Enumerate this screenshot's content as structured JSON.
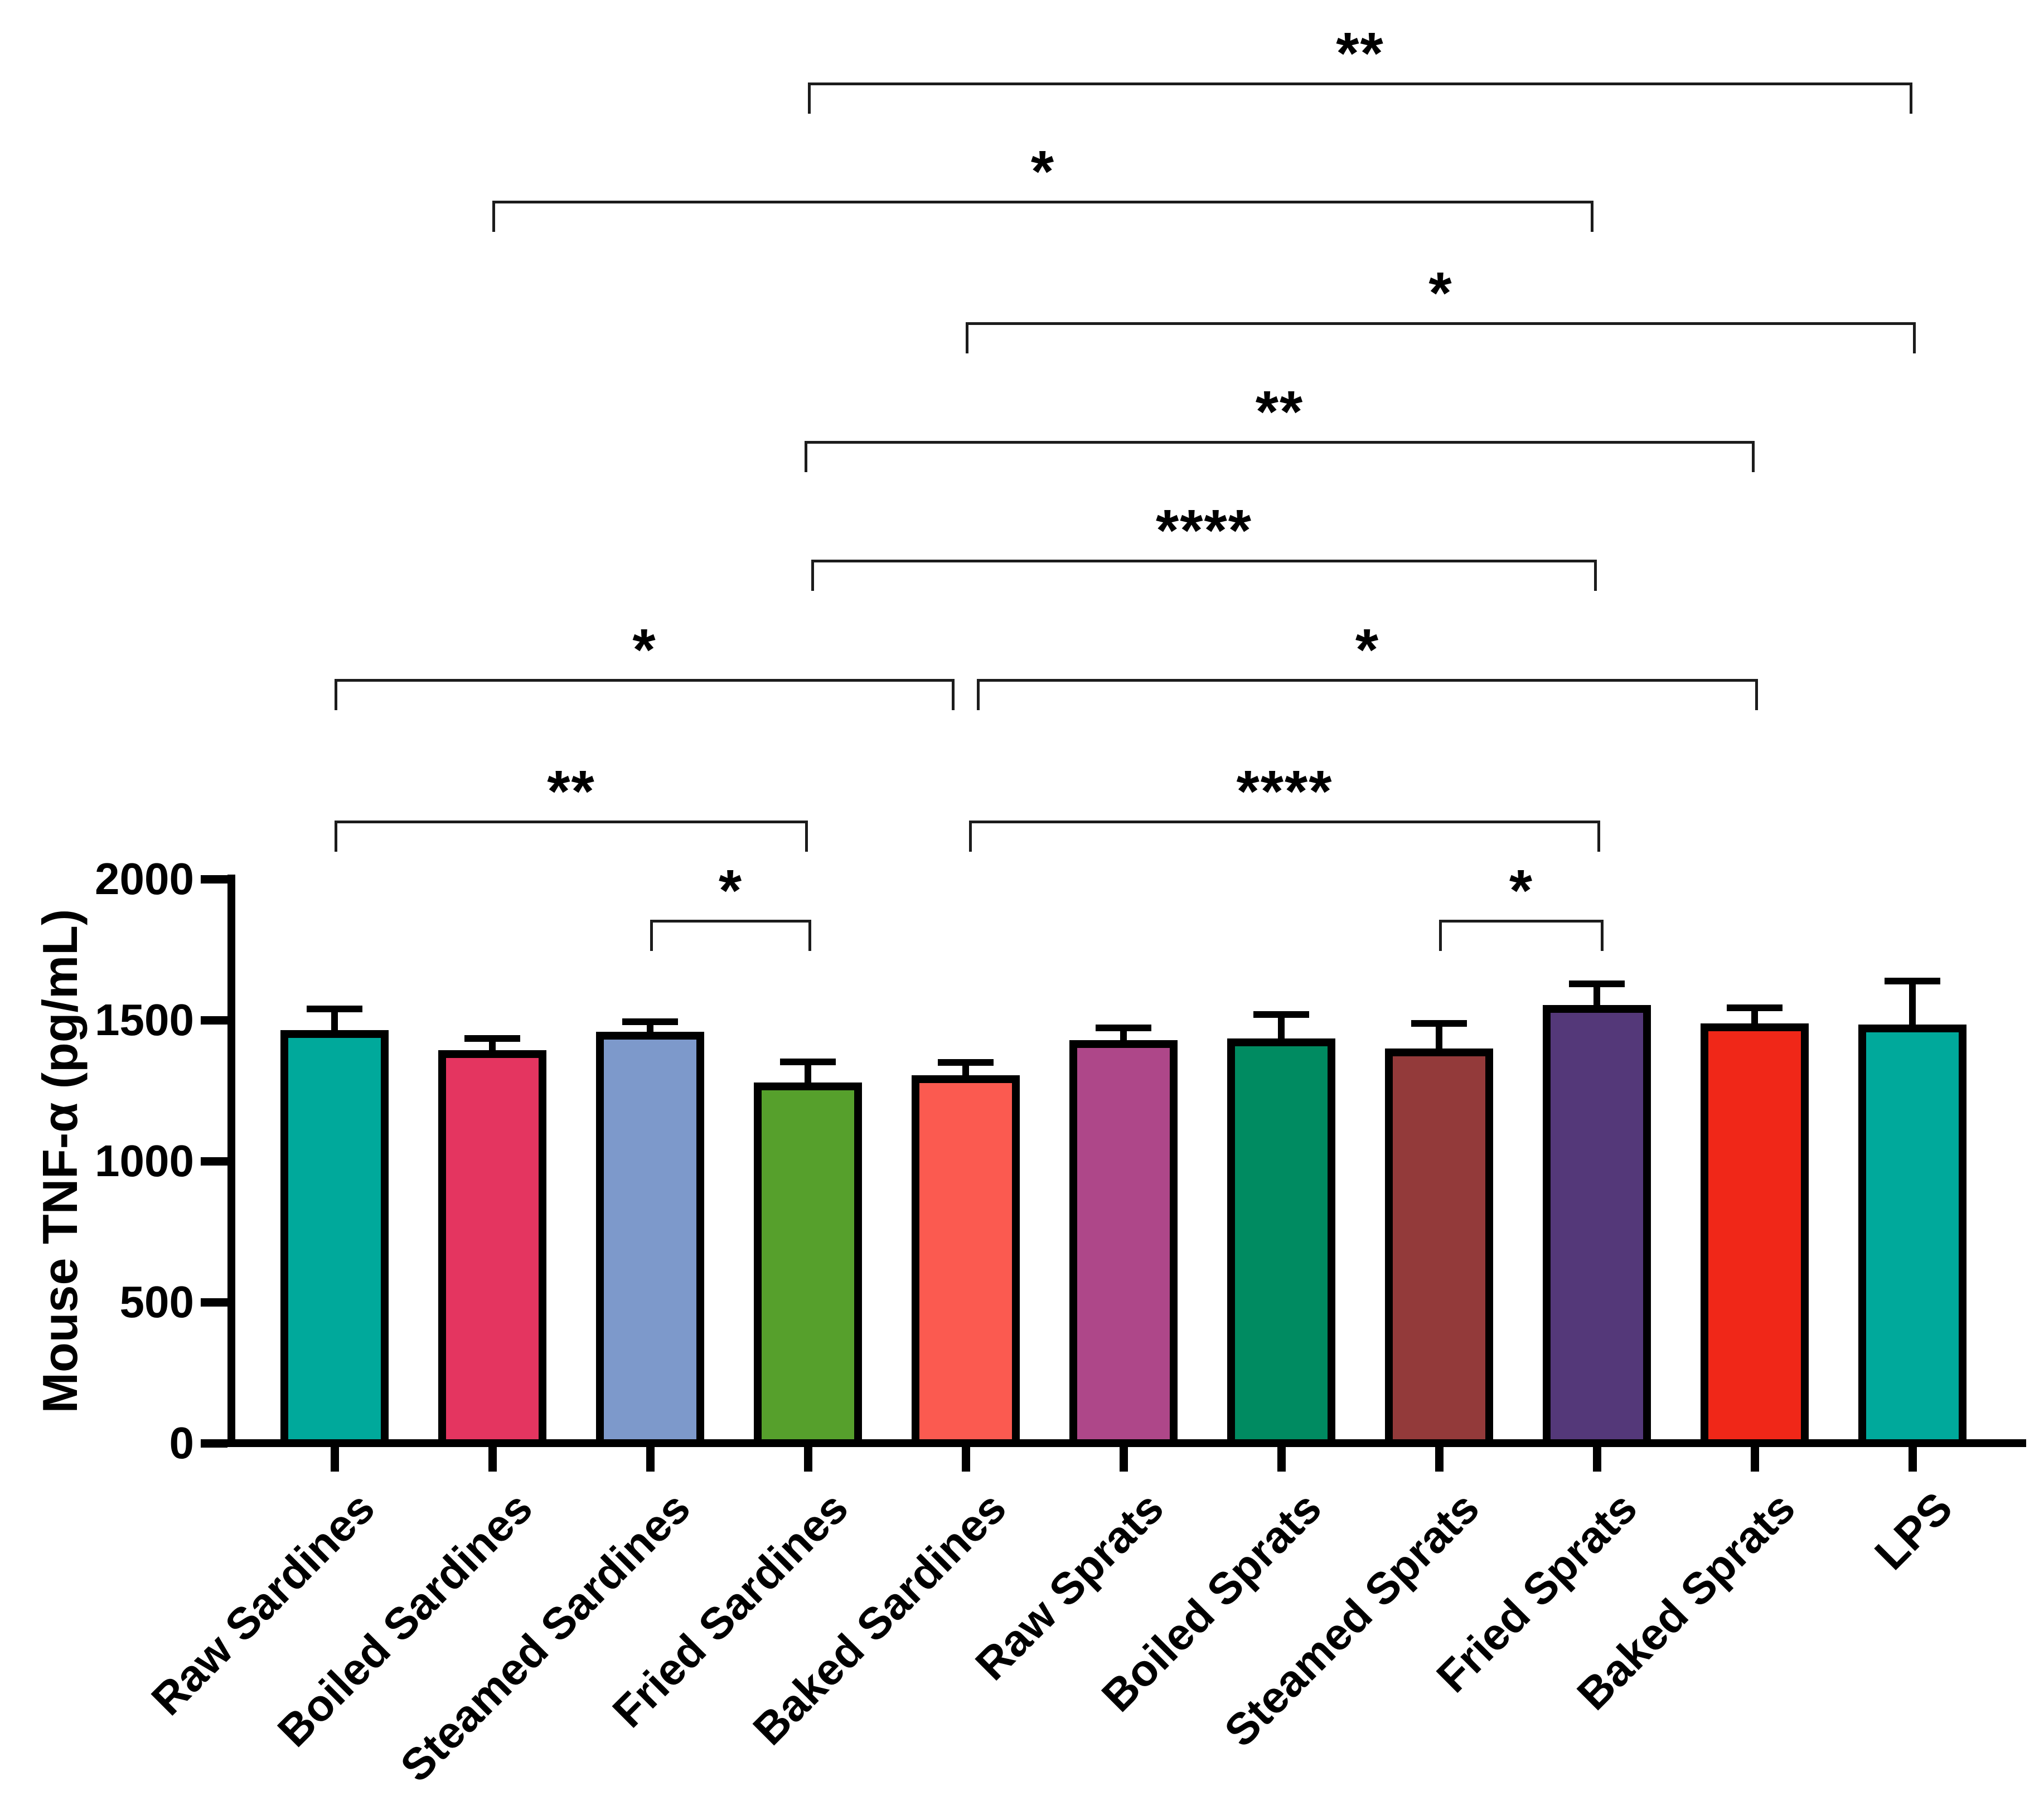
{
  "figure": {
    "background": "#FFFFFF"
  },
  "chart_data": {
    "type": "bar",
    "title": "",
    "xlabel": "",
    "ylabel": "Mouse TNF-α (pg/mL)",
    "ylim": [
      0,
      2000
    ],
    "yticks": [
      0,
      500,
      1000,
      1500,
      2000
    ],
    "grid": false,
    "legend": "none",
    "categories": [
      "Raw Sardines",
      "Boiled Sardines",
      "Steamed Sardines",
      "Fried Sardines",
      "Baked Sardines",
      "Raw Sprats",
      "Boiled Sprats",
      "Steamed Sprats",
      "Fried Sprats",
      "Baked Sprats",
      "LPS"
    ],
    "series": [
      {
        "name": "Mouse TNF-α (pg/mL)",
        "values": [
          1450,
          1380,
          1445,
          1265,
          1290,
          1415,
          1420,
          1385,
          1540,
          1475,
          1470
        ]
      }
    ],
    "errors_sem_plus": [
      90,
      55,
      50,
      87,
      60,
      57,
      100,
      103,
      88,
      68,
      168
    ],
    "bar_colors": [
      "#00A99B",
      "#E43560",
      "#7D99CB",
      "#56A02C",
      "#FB5A50",
      "#AE4789",
      "#008B61",
      "#933A3A",
      "#543879",
      "#F02718",
      "#00A99B"
    ],
    "bar_border_color": "#000000",
    "error_bar_style": "plus-sem-with-cap",
    "significance": [
      {
        "a": "Fried Sardines",
        "b": "LPS",
        "label": "**",
        "y": 148,
        "xa": 1449,
        "xb": 3430
      },
      {
        "a": "Boiled Sardines",
        "b": "Fried Sprats",
        "label": "*",
        "y": 360,
        "xa": 883,
        "xb": 2858
      },
      {
        "a": "Baked Sardines",
        "b": "LPS",
        "label": "*",
        "y": 578,
        "xa": 1732,
        "xb": 3436
      },
      {
        "a": "Fried Sardines",
        "b": "Baked Sprats",
        "label": "**",
        "y": 791,
        "xa": 1443,
        "xb": 3147
      },
      {
        "a": "Fried Sardines",
        "b": "Fried Sprats",
        "label": "****",
        "y": 1004,
        "xa": 1455,
        "xb": 2864
      },
      {
        "a": "Raw Sardines",
        "b": "Baked Sardines",
        "label": "*",
        "y": 1218,
        "xa": 600,
        "xb": 1712
      },
      {
        "a": "Baked Sardines",
        "b": "Baked Sprats",
        "label": "*",
        "y": 1218,
        "xa": 1752,
        "xb": 3153
      },
      {
        "a": "Raw Sardines",
        "b": "Fried Sardines",
        "label": "**",
        "y": 1472,
        "xa": 600,
        "xb": 1449
      },
      {
        "a": "Baked Sardines",
        "b": "Fried Sprats",
        "label": "****",
        "y": 1472,
        "xa": 1738,
        "xb": 2870
      },
      {
        "a": "Steamed Sardines",
        "b": "Fried Sardines",
        "label": "*",
        "y": 1650,
        "xa": 1166,
        "xb": 1455
      },
      {
        "a": "Steamed Sprats",
        "b": "Fried Sprats",
        "label": "*",
        "y": 1650,
        "xa": 2581,
        "xb": 2876
      }
    ]
  }
}
